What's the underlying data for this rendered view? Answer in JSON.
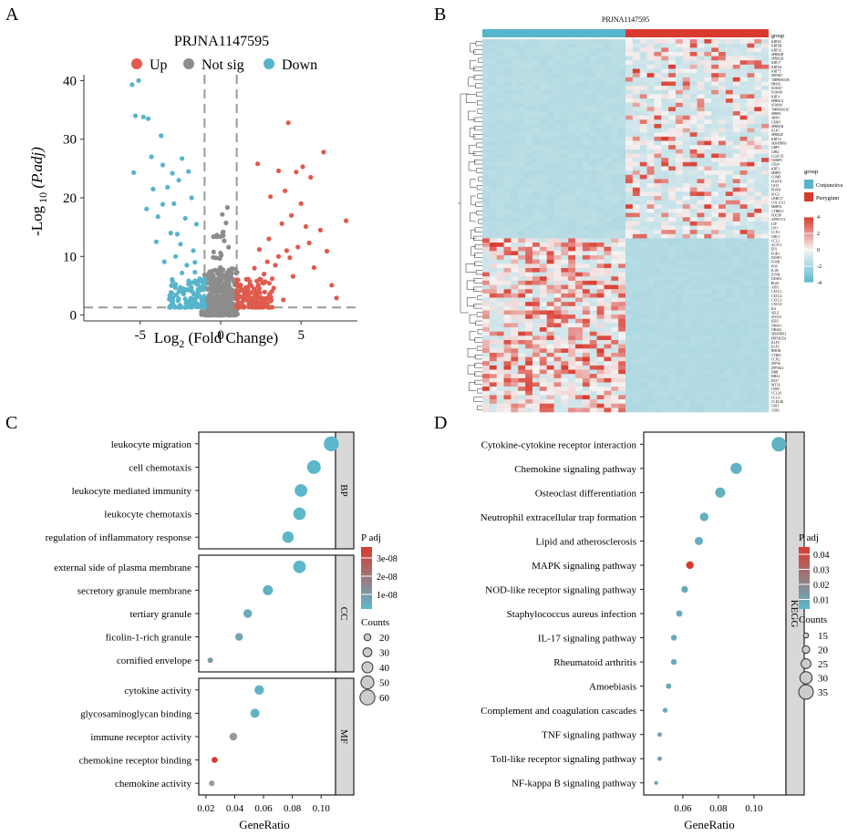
{
  "panel_letters": [
    "A",
    "B",
    "C",
    "D"
  ],
  "colors": {
    "up": "#E05A4C",
    "notsig": "#8C8C8C",
    "down": "#56B4CC",
    "high": "#D93A2E",
    "low": "#5BB8CC",
    "mid": "#F4F4F4",
    "strip": "#D8D8D8",
    "grid_dash": "#9A9A9A"
  },
  "chart_data": [
    {
      "id": "A",
      "type": "scatter",
      "title": "PRJNA1147595",
      "xlabel_main": "Log",
      "xlabel_sub": "2",
      "xlabel_tail": " (Fold Change)",
      "ylabel_main": "-Log",
      "ylabel_sub": " 10",
      "ylabel_tail": " (P.adj)",
      "legend": [
        "Up",
        "Not sig",
        "Down"
      ],
      "xlim": [
        -8.5,
        8.5
      ],
      "ylim": [
        -1,
        41
      ],
      "xticks": [
        -5,
        0,
        5
      ],
      "yticks": [
        0,
        10,
        20,
        30,
        40
      ],
      "fc_threshold": [
        -1,
        1
      ],
      "p_threshold": 1.3,
      "series": [
        {
          "name": "Up",
          "points": [
            [
              6.4,
              27.8
            ],
            [
              4.2,
              32.8
            ],
            [
              2.3,
              25.8
            ],
            [
              3.6,
              24.6
            ],
            [
              4.7,
              24.4
            ],
            [
              5.1,
              25.3
            ],
            [
              5.6,
              23.5
            ],
            [
              3.1,
              20.2
            ],
            [
              4.0,
              21.2
            ],
            [
              7.8,
              16.1
            ],
            [
              6.2,
              14.5
            ],
            [
              5.3,
              15.1
            ],
            [
              4.8,
              11.6
            ],
            [
              4.1,
              11.0
            ],
            [
              3.6,
              10.0
            ],
            [
              2.9,
              9.1
            ],
            [
              2.1,
              8.0
            ],
            [
              1.6,
              6.1
            ],
            [
              1.3,
              4.3
            ],
            [
              2.5,
              3.0
            ],
            [
              3.3,
              4.6
            ],
            [
              4.5,
              6.6
            ],
            [
              5.8,
              8.1
            ],
            [
              6.9,
              5.1
            ],
            [
              3.9,
              2.6
            ],
            [
              1.8,
              2.2
            ],
            [
              2.6,
              5.5
            ],
            [
              3.0,
              13.0
            ],
            [
              4.4,
              17.0
            ],
            [
              5.0,
              19.0
            ],
            [
              6.6,
              10.9
            ],
            [
              7.2,
              2.9
            ],
            [
              1.5,
              3.5
            ],
            [
              2.2,
              4.0
            ],
            [
              1.9,
              5.0
            ],
            [
              2.7,
              7.0
            ],
            [
              3.4,
              8.5
            ],
            [
              4.3,
              9.8
            ],
            [
              5.5,
              12.3
            ],
            [
              3.8,
              15.6
            ],
            [
              2.4,
              11.2
            ],
            [
              1.4,
              2.6
            ],
            [
              1.7,
              3.0
            ],
            [
              2.0,
              2.5
            ],
            [
              3.2,
              6.2
            ]
          ]
        },
        {
          "name": "Down",
          "points": [
            [
              -5.5,
              39.3
            ],
            [
              -5.1,
              40.0
            ],
            [
              -5.3,
              34.0
            ],
            [
              -4.8,
              33.8
            ],
            [
              -4.5,
              33.5
            ],
            [
              -3.7,
              30.6
            ],
            [
              -4.3,
              27.0
            ],
            [
              -3.6,
              25.6
            ],
            [
              -5.4,
              24.3
            ],
            [
              -2.4,
              26.7
            ],
            [
              -3.0,
              24.2
            ],
            [
              -2.6,
              23.0
            ],
            [
              -2.0,
              24.5
            ],
            [
              -3.3,
              21.8
            ],
            [
              -1.8,
              20.0
            ],
            [
              -2.9,
              19.0
            ],
            [
              -4.6,
              18.1
            ],
            [
              -3.9,
              16.8
            ],
            [
              -2.2,
              16.5
            ],
            [
              -1.5,
              15.5
            ],
            [
              -3.1,
              14.0
            ],
            [
              -2.5,
              12.1
            ],
            [
              -1.7,
              11.0
            ],
            [
              -2.8,
              10.0
            ],
            [
              -3.5,
              9.1
            ],
            [
              -2.1,
              8.5
            ],
            [
              -1.6,
              7.3
            ],
            [
              -1.3,
              6.2
            ],
            [
              -2.0,
              5.3
            ],
            [
              -1.4,
              4.4
            ],
            [
              -2.6,
              4.0
            ],
            [
              -1.2,
              3.0
            ],
            [
              -1.9,
              2.6
            ],
            [
              -3.0,
              5.8
            ],
            [
              -4.0,
              12.5
            ],
            [
              -1.5,
              2.0
            ],
            [
              -2.3,
              3.6
            ],
            [
              -1.1,
              2.2
            ],
            [
              -1.8,
              5.5
            ],
            [
              -2.4,
              7.2
            ],
            [
              -3.6,
              18.9
            ],
            [
              -4.2,
              21.5
            ],
            [
              -1.6,
              9.0
            ],
            [
              -2.7,
              13.8
            ]
          ]
        }
      ]
    },
    {
      "id": "B",
      "type": "heatmap",
      "title": "PRJNA1147595",
      "legend_title_1": "group",
      "groups": [
        "Conjunctiva",
        "Pterygium"
      ],
      "legend_title_2": "group",
      "scale_ticks": [
        4,
        2,
        0,
        -2,
        -4
      ],
      "genes": [
        "KRT6C",
        "KRT6B",
        "KRT16",
        "SPRR2B",
        "SPRR2D",
        "KRT17",
        "KRT6A",
        "KRT75",
        "SPINK7",
        "TMPRSS11B",
        "PRSS3",
        "S100A7",
        "S100A8",
        "KRT4",
        "SPRR1A",
        "S100A9",
        "TMPRSS11E",
        "SPRR3",
        "SBSN",
        "CRNN",
        "SPRR1B",
        "KLK7",
        "SPRR2E",
        "KRT13",
        "SERPINB3",
        "GBP5",
        "GJB2",
        "LGALS3",
        "CRISP3",
        "CD24",
        "KRT3",
        "MMP3",
        "COMP",
        "POSTN",
        "CST1",
        "PLPP4",
        "SCG2",
        "LRRC17",
        "COL11A1",
        "MMP11",
        "CTHRC1",
        "FDCSP",
        "ATP6V1A",
        "LTF",
        "LPO",
        "LCN1",
        "ODC1",
        "CCL2",
        "ACTC1",
        "EFS",
        "EGR1",
        "DUSP1",
        "FOSB",
        "FOS",
        "IL1B",
        "JUNB",
        "DUSP2",
        "RGS1",
        "ATF3",
        "CXCL1",
        "CXCL2",
        "CXCL3",
        "CXCL8",
        "IL6",
        "SELE",
        "SOCS3",
        "IER3",
        "NR4A1",
        "NR4A2",
        "SERPINE1",
        "PPP1R15A",
        "KLF4",
        "KLF2",
        "RHOB",
        "CYR61",
        "CCN2",
        "ZFP36",
        "ZFP36L1",
        "HBB",
        "HBA2",
        "IFI27",
        "MT1X",
        "CD69",
        "CCL20",
        "CCL4",
        "CLEC4E",
        "CSF3",
        "CD83"
      ],
      "conj_frac": 0.5
    },
    {
      "id": "C",
      "type": "scatter",
      "xlabel": "GeneRatio",
      "xlim": [
        0.015,
        0.11
      ],
      "xticks": [
        0.02,
        0.04,
        0.06,
        0.08,
        0.1
      ],
      "xtick_labels": [
        "0.02",
        "0.04",
        "0.06",
        "0.08",
        "0.10"
      ],
      "color_title": "P adj",
      "color_ticks": [
        "3e-08",
        "2e-08",
        "1e-08"
      ],
      "size_title": "Counts",
      "size_legend": [
        20,
        30,
        40,
        50,
        60
      ],
      "facets": [
        {
          "name": "BP",
          "terms": [
            "leukocyte migration",
            "cell chemotaxis",
            "leukocyte mediated immunity",
            "leukocyte chemotaxis",
            "regulation of inflammatory response"
          ],
          "ratio": [
            0.107,
            0.095,
            0.086,
            0.085,
            0.077
          ],
          "count": [
            60,
            54,
            48,
            47,
            43
          ],
          "padj": [
            1e-10,
            2e-10,
            5e-10,
            6e-10,
            1e-09
          ]
        },
        {
          "name": "CC",
          "terms": [
            "external side of plasma membrane",
            "secretory granule membrane",
            "tertiary granule",
            "ficolin-1-rich granule",
            "cornified envelope"
          ],
          "ratio": [
            0.085,
            0.063,
            0.049,
            0.043,
            0.023
          ],
          "count": [
            48,
            36,
            28,
            24,
            13
          ],
          "padj": [
            8e-10,
            3e-09,
            6e-09,
            1e-08,
            1.5e-08
          ]
        },
        {
          "name": "MF",
          "terms": [
            "cytokine activity",
            "glycosaminoglycan binding",
            "immune receptor activity",
            "chemokine receptor binding",
            "chemokine activity"
          ],
          "ratio": [
            0.057,
            0.054,
            0.039,
            0.026,
            0.024
          ],
          "count": [
            33,
            31,
            24,
            16,
            14
          ],
          "padj": [
            2e-09,
            3e-09,
            1.8e-08,
            3.6e-08,
            1.9e-08
          ]
        }
      ],
      "padj_max": 3.6e-08
    },
    {
      "id": "D",
      "type": "scatter",
      "xlabel": "GeneRatio",
      "xlim": [
        0.038,
        0.118
      ],
      "xticks": [
        0.06,
        0.08,
        0.1
      ],
      "xtick_labels": [
        "0.06",
        "0.08",
        "0.10"
      ],
      "facet": "KEGG",
      "color_title": "P adj",
      "color_ticks": [
        "0.04",
        "0.03",
        "0.02",
        "0.01"
      ],
      "size_title": "Counts",
      "size_legend": [
        15,
        20,
        25,
        30,
        35
      ],
      "terms": [
        "Cytokine-cytokine receptor interaction",
        "Chemokine signaling pathway",
        "Osteoclast differentiation",
        "Neutrophil extracellular trap formation",
        "Lipid and atherosclerosis",
        "MAPK signaling pathway",
        "NOD-like receptor signaling pathway",
        "Staphylococcus aureus infection",
        "IL-17 signaling pathway",
        "Rheumatoid arthritis",
        "Amoebiasis",
        "Complement and coagulation cascades",
        "TNF signaling pathway",
        "Toll-like receptor signaling pathway",
        "NF-kappa B signaling pathway"
      ],
      "ratio": [
        0.114,
        0.09,
        0.081,
        0.072,
        0.069,
        0.064,
        0.061,
        0.058,
        0.055,
        0.055,
        0.052,
        0.05,
        0.047,
        0.047,
        0.045
      ],
      "count": [
        36,
        29,
        26,
        23,
        22,
        21,
        19,
        18,
        17,
        17,
        16,
        15,
        14,
        14,
        13
      ],
      "padj": [
        0.002,
        0.002,
        0.003,
        0.003,
        0.004,
        0.045,
        0.006,
        0.005,
        0.005,
        0.005,
        0.006,
        0.006,
        0.007,
        0.007,
        0.006
      ],
      "padj_max": 0.045
    }
  ]
}
